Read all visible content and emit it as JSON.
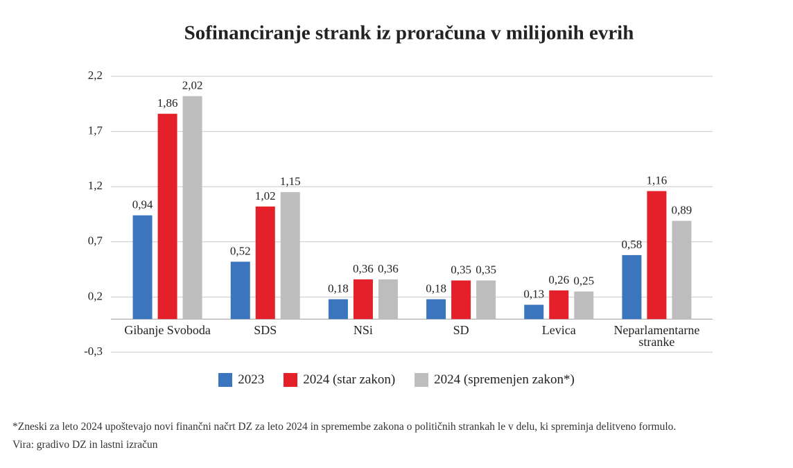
{
  "chart_data": {
    "type": "bar",
    "title": "Sofinanciranje strank iz proračuna v milijonih evrih",
    "categories": [
      "Gibanje Svoboda",
      "SDS",
      "NSi",
      "SD",
      "Levica",
      "Neparlamentarne stranke"
    ],
    "series": [
      {
        "name": "2023",
        "color": "#3a75bd",
        "values": [
          0.94,
          0.52,
          0.18,
          0.18,
          0.13,
          0.58
        ],
        "value_labels": [
          "0,94",
          "0,52",
          "0,18",
          "0,18",
          "0,13",
          "0,58"
        ]
      },
      {
        "name": "2024 (star zakon)",
        "color": "#e4202a",
        "values": [
          1.86,
          1.02,
          0.36,
          0.35,
          0.26,
          1.16
        ],
        "value_labels": [
          "1,86",
          "1,02",
          "0,36",
          "0,35",
          "0,26",
          "1,16"
        ]
      },
      {
        "name": "2024 (spremenjen zakon*)",
        "color": "#bdbdbe",
        "values": [
          2.02,
          1.15,
          0.36,
          0.35,
          0.25,
          0.89
        ],
        "value_labels": [
          "2,02",
          "1,15",
          "0,36",
          "0,35",
          "0,25",
          "0,89"
        ]
      }
    ],
    "ylim": [
      -0.3,
      2.2
    ],
    "yticks": [
      {
        "value": -0.3,
        "label": "-0,3"
      },
      {
        "value": 0.2,
        "label": "0,2"
      },
      {
        "value": 0.7,
        "label": "0,7"
      },
      {
        "value": 1.2,
        "label": "1,2"
      },
      {
        "value": 1.7,
        "label": "1,7"
      },
      {
        "value": 2.2,
        "label": "2,2"
      }
    ],
    "grid": true,
    "legend": "bottom",
    "footnote": "*Zneski za leto 2024 upoštevajo novi finančni načrt DZ za leto 2024 in spremembe zakona o političnih strankah le v delu, ki spreminja delitveno formulo.",
    "source": "Vira: gradivo DZ in lastni izračun"
  }
}
